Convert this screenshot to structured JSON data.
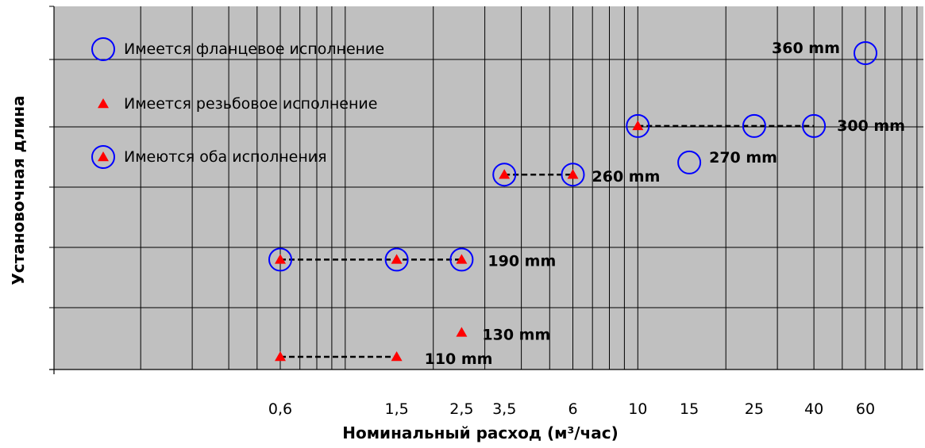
{
  "chart_data": {
    "type": "scatter",
    "x_scale": "log",
    "xlabel": "Номинальный расход (м³/час)",
    "ylabel": "Установочная длина",
    "x_ticks": [
      "0,6",
      "1,5",
      "2,5",
      "3,5",
      "6",
      "10",
      "15",
      "25",
      "40",
      "60"
    ],
    "x_tick_values": [
      0.6,
      1.5,
      2.5,
      3.5,
      6,
      10,
      15,
      25,
      40,
      60
    ],
    "xlim": [
      0.25,
      100
    ],
    "ylim": [
      100,
      380
    ],
    "grid": true,
    "legend_position": "top-left",
    "legend": [
      {
        "symbol": "circle",
        "label": "Имеется фланцевое исполнение"
      },
      {
        "symbol": "triangle",
        "label": "Имеется резьбовое исполнение"
      },
      {
        "symbol": "both",
        "label": "Имеются оба исполнения"
      }
    ],
    "series": [
      {
        "name": "Имеется фланцевое исполнение",
        "marker": "circle",
        "points": [
          {
            "x": 15,
            "y": 270
          },
          {
            "x": 25,
            "y": 300
          },
          {
            "x": 40,
            "y": 300
          },
          {
            "x": 60,
            "y": 360
          }
        ]
      },
      {
        "name": "Имеется резьбовое исполнение",
        "marker": "triangle",
        "points": [
          {
            "x": 0.6,
            "y": 110
          },
          {
            "x": 1.5,
            "y": 110
          },
          {
            "x": 2.5,
            "y": 130
          }
        ]
      },
      {
        "name": "Имеются оба исполнения",
        "marker": "both",
        "points": [
          {
            "x": 0.6,
            "y": 190
          },
          {
            "x": 1.5,
            "y": 190
          },
          {
            "x": 2.5,
            "y": 190
          },
          {
            "x": 3.5,
            "y": 260
          },
          {
            "x": 6,
            "y": 260
          },
          {
            "x": 10,
            "y": 300
          }
        ]
      }
    ],
    "dashed_links": [
      {
        "x1": 0.6,
        "x2": 1.5,
        "y": 110
      },
      {
        "x1": 0.6,
        "x2": 2.5,
        "y": 190
      },
      {
        "x1": 3.5,
        "x2": 6,
        "y": 260
      },
      {
        "x1": 10,
        "x2": 40,
        "y": 300
      }
    ],
    "annotations": [
      {
        "text": "110 mm",
        "x": 1.5,
        "y": 110
      },
      {
        "text": "130 mm",
        "x": 2.5,
        "y": 130
      },
      {
        "text": "190 mm",
        "x": 2.5,
        "y": 190
      },
      {
        "text": "260 mm",
        "x": 6,
        "y": 260
      },
      {
        "text": "270 mm",
        "x": 15,
        "y": 270
      },
      {
        "text": "300 mm",
        "x": 40,
        "y": 300
      },
      {
        "text": "360 mm",
        "x": 60,
        "y": 360
      }
    ],
    "colors": {
      "plot_bg": "#c0c0c0",
      "grid": "#000000",
      "triangle": "#ff0000",
      "circle": "#0000ff"
    }
  }
}
